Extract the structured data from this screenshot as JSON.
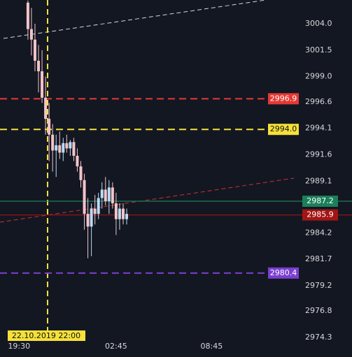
{
  "chart_data": {
    "type": "candlestick",
    "x": [
      9.5,
      10.7,
      11.9,
      13.1,
      14.3,
      15.5,
      16.7,
      17.9,
      19.1,
      20.3,
      21.5,
      22.7,
      23.9,
      25.1,
      26.3,
      27.5,
      28.7,
      29.9,
      31.1,
      32.3,
      33.5,
      34.7,
      35.9,
      37.1,
      38.3,
      39.5,
      40.7,
      41.9,
      43.1
    ],
    "open": [
      3006,
      3003.5,
      3002.5,
      3000.5,
      2999.5,
      2997,
      2995,
      2993.5,
      2992,
      2992.5,
      2991.8,
      2992.7,
      2992.2,
      2992.8,
      2991.5,
      2990.5,
      2989.2,
      2986,
      2984.8,
      2986.5,
      2986,
      2987.5,
      2988.3,
      2987.2,
      2988.5,
      2987,
      2985.5,
      2986.5,
      2985.5
    ],
    "high": [
      3006.2,
      3005.5,
      3004,
      3002,
      3001.5,
      2999,
      2996.5,
      2994.5,
      2993.5,
      2993.8,
      2993.2,
      2993.5,
      2993,
      2993.2,
      2992.2,
      2991,
      2989.8,
      2987.5,
      2987,
      2987.8,
      2988,
      2989,
      2989.5,
      2989.2,
      2989,
      2988,
      2987,
      2987,
      2986.5
    ],
    "low": [
      3002.5,
      3001,
      2999.5,
      2997.5,
      2996.5,
      2993.5,
      2991,
      2990,
      2989.5,
      2991.2,
      2991,
      2991.8,
      2991.5,
      2991,
      2990,
      2988.5,
      2984.5,
      2981.8,
      2982,
      2985,
      2985.5,
      2986.5,
      2986.8,
      2986,
      2986.5,
      2984,
      2984.5,
      2985,
      2985
    ],
    "close": [
      3003.5,
      3002.5,
      3000.5,
      2999.5,
      2997,
      2995,
      2993.5,
      2992,
      2992.5,
      2991.8,
      2992.7,
      2992.2,
      2992.8,
      2991.5,
      2990.5,
      2989.2,
      2986,
      2984.8,
      2986.5,
      2986,
      2987.5,
      2988.3,
      2987.2,
      2988.5,
      2987,
      2985.5,
      2986.5,
      2985.5,
      2986
    ],
    "up_color": "#b8dcf5",
    "down_color": "#f2c4c8",
    "xlim": [
      0,
      100
    ],
    "xticks": [
      {
        "value": 6.5,
        "label": "19:30"
      },
      {
        "value": 39.5,
        "label": "02:45"
      },
      {
        "value": 72,
        "label": "08:45"
      }
    ],
    "ylim": [
      2973.84,
      3006.25
    ],
    "yticks": [
      {
        "value": 3004.0,
        "label": "3004.0"
      },
      3001.5,
      {
        "value": 2999.0,
        "label": "2999.0"
      },
      2996.6,
      2994.1,
      2991.6,
      2989.1,
      2984.2,
      2981.7,
      2979.2,
      2976.8,
      2974.3
    ],
    "levels": [
      {
        "value": 2996.9,
        "label": "2996.9",
        "color": "#e53935",
        "style": "dashed",
        "on_axis": false
      },
      {
        "value": 2994.0,
        "label": "2994.0",
        "color": "#f5e13a",
        "style": "dashed",
        "on_axis": false
      },
      {
        "value": 2987.2,
        "label": "2987.2",
        "color": "#1b7f5a",
        "style": "solid",
        "on_axis": true
      },
      {
        "value": 2985.9,
        "label": "2985.9",
        "color": "#a31515",
        "style": "solid",
        "on_axis": true
      },
      {
        "value": 2980.4,
        "label": "2980.4",
        "color": "#7b3fd0",
        "style": "dashed",
        "on_axis": false
      }
    ],
    "crosshair_label": "22.10.2019 22:00"
  }
}
